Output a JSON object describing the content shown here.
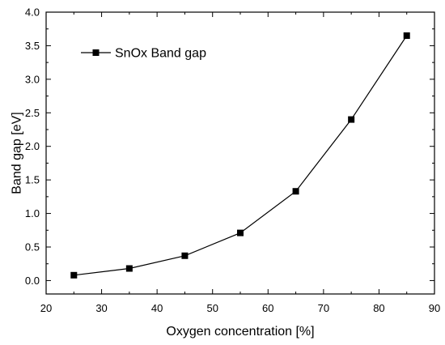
{
  "chart_data": {
    "type": "line",
    "title": "",
    "xlabel": "Oxygen concentration [%]",
    "ylabel": "Band gap [eV]",
    "xlim": [
      20,
      90
    ],
    "ylim": [
      -0.2,
      4.0
    ],
    "x_ticks": [
      20,
      30,
      40,
      50,
      60,
      70,
      80,
      90
    ],
    "x_tick_labels": [
      "20",
      "30",
      "40",
      "50",
      "60",
      "70",
      "80",
      "90"
    ],
    "y_ticks": [
      0.0,
      0.5,
      1.0,
      1.5,
      2.0,
      2.5,
      3.0,
      3.5,
      4.0
    ],
    "y_tick_labels": [
      "0.0",
      "0.5",
      "1.0",
      "1.5",
      "2.0",
      "2.5",
      "3.0",
      "3.5",
      "4.0"
    ],
    "grid": false,
    "legend_position": "top-left",
    "series": [
      {
        "name": "SnOx Band gap",
        "marker": "square",
        "color": "#000000",
        "x": [
          25,
          35,
          45,
          55,
          65,
          75,
          85
        ],
        "y": [
          0.08,
          0.18,
          0.37,
          0.71,
          1.33,
          2.4,
          3.65
        ]
      }
    ]
  }
}
